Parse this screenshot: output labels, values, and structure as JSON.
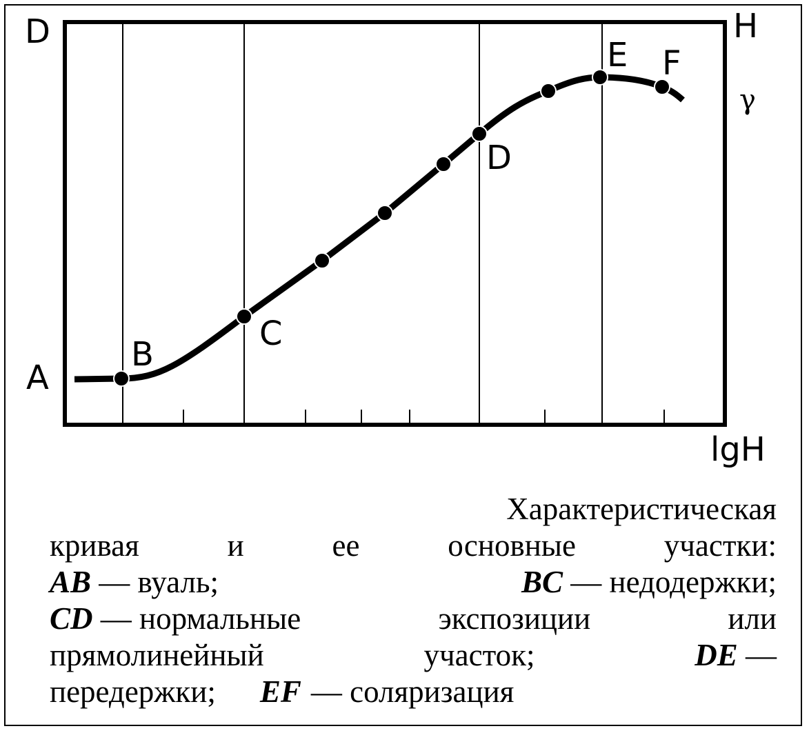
{
  "axes": {
    "y_label": "D",
    "top_right_label": "H",
    "gamma_label": "γ",
    "x_label": "lgH"
  },
  "points": [
    {
      "label": "A"
    },
    {
      "label": "B"
    },
    {
      "label": "C"
    },
    {
      "label": "D"
    },
    {
      "label": "E"
    },
    {
      "label": "F"
    }
  ],
  "caption": {
    "lines": [
      [
        "Характеристическая"
      ],
      [
        "кривая",
        "и",
        "ее",
        "основные",
        "участки:"
      ],
      [
        "AB",
        "— вуаль;",
        "BC",
        "— недодержки;"
      ],
      [
        "CD",
        "— нормальные",
        "экспозиции",
        "или"
      ],
      [
        "прямолинейный",
        "участок;",
        "DE",
        "—"
      ],
      [
        "передержки;",
        "EF",
        "— соляризация"
      ]
    ]
  }
}
